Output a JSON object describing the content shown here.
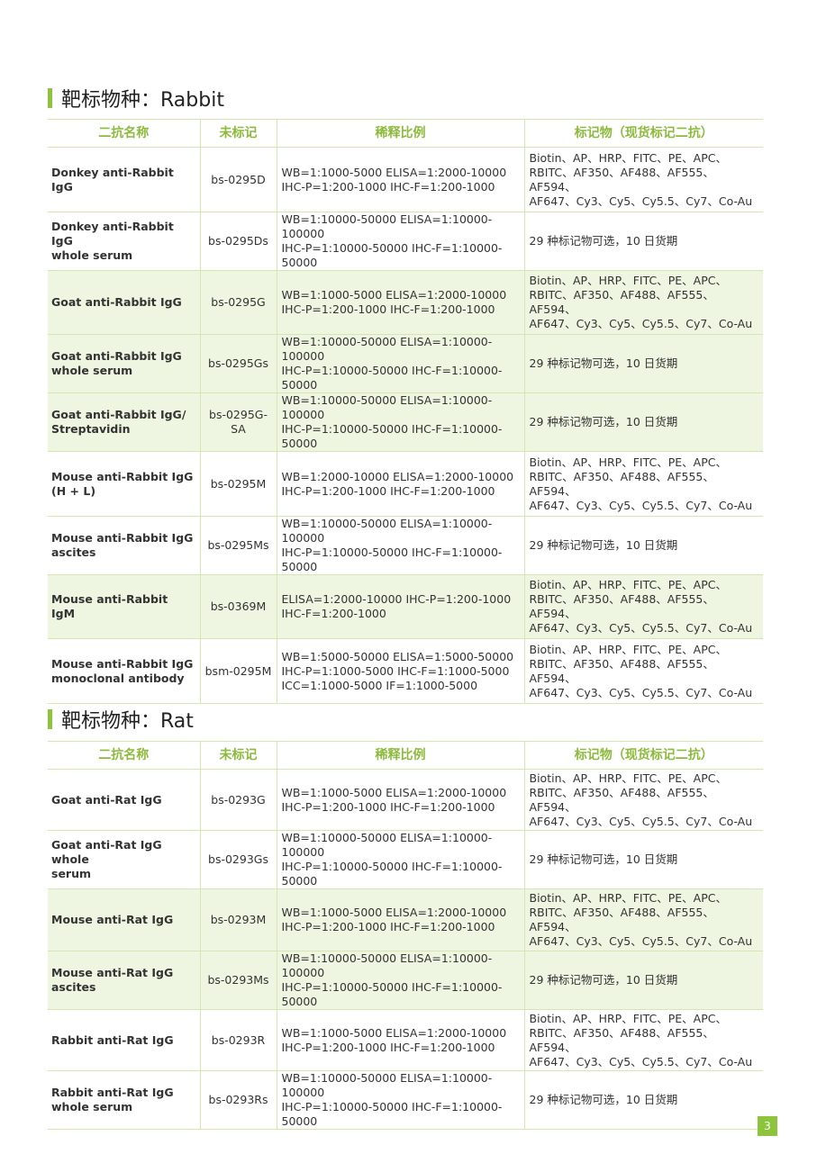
{
  "headers": {
    "name": "二抗名称",
    "code": "未标记",
    "dilution": "稀释比例",
    "label": "标记物（现货标记二抗）"
  },
  "sections": [
    {
      "title": "靶标物种：Rabbit",
      "rows": [
        {
          "name": "Donkey anti-Rabbit IgG",
          "code": "bs-0295D",
          "dilution": "WB=1:1000-5000  ELISA=1:2000-10000\nIHC-P=1:200-1000  IHC-F=1:200-1000",
          "label": "Biotin、AP、HRP、FITC、PE、APC、\nRBITC、AF350、AF488、AF555、AF594、\nAF647、Cy3、Cy5、Cy5.5、Cy7、Co-Au"
        },
        {
          "name": "Donkey anti-Rabbit IgG\nwhole serum",
          "code": "bs-0295Ds",
          "dilution": "WB=1:10000-50000  ELISA=1:10000-100000\nIHC-P=1:10000-50000  IHC-F=1:10000-50000",
          "label": "29 种标记物可选，10 日货期"
        },
        {
          "name": "Goat anti-Rabbit IgG",
          "code": "bs-0295G",
          "dilution": "WB=1:1000-5000  ELISA=1:2000-10000\nIHC-P=1:200-1000  IHC-F=1:200-1000",
          "label": "Biotin、AP、HRP、FITC、PE、APC、\nRBITC、AF350、AF488、AF555、AF594、\nAF647、Cy3、Cy5、Cy5.5、Cy7、Co-Au"
        },
        {
          "name": "Goat anti-Rabbit IgG\nwhole serum",
          "code": "bs-0295Gs",
          "dilution": "WB=1:10000-50000  ELISA=1:10000-100000\nIHC-P=1:10000-50000  IHC-F=1:10000-50000",
          "label": "29 种标记物可选，10 日货期"
        },
        {
          "name": "Goat anti-Rabbit IgG/\nStreptavidin",
          "code": "bs-0295G-\nSA",
          "dilution": "WB=1:10000-50000  ELISA=1:10000-100000\nIHC-P=1:10000-50000  IHC-F=1:10000-50000",
          "label": "29 种标记物可选，10 日货期"
        },
        {
          "name": "Mouse anti-Rabbit IgG\n(H + L)",
          "code": "bs-0295M",
          "dilution": "WB=1:2000-10000  ELISA=1:2000-10000\nIHC-P=1:200-1000  IHC-F=1:200-1000",
          "label": "Biotin、AP、HRP、FITC、PE、APC、\nRBITC、AF350、AF488、AF555、AF594、\nAF647、Cy3、Cy5、Cy5.5、Cy7、Co-Au"
        },
        {
          "name": "Mouse anti-Rabbit IgG\nascites",
          "code": "bs-0295Ms",
          "dilution": "WB=1:10000-50000  ELISA=1:10000-100000\nIHC-P=1:10000-50000  IHC-F=1:10000-50000",
          "label": "29 种标记物可选，10 日货期"
        },
        {
          "name": "Mouse anti-Rabbit IgM",
          "code": "bs-0369M",
          "dilution": "ELISA=1:2000-10000 IHC-P=1:200-1000\nIHC-F=1:200-1000",
          "label": "Biotin、AP、HRP、FITC、PE、APC、\nRBITC、AF350、AF488、AF555、AF594、\nAF647、Cy3、Cy5、Cy5.5、Cy7、Co-Au"
        },
        {
          "name": "Mouse anti-Rabbit IgG\nmonoclonal antibody",
          "code": "bsm-0295M",
          "dilution": "WB=1:5000-50000  ELISA=1:5000-50000\nIHC-P=1:1000-5000  IHC-F=1:1000-5000\nICC=1:1000-5000   IF=1:1000-5000",
          "label": "Biotin、AP、HRP、FITC、PE、APC、\nRBITC、AF350、AF488、AF555、AF594、\nAF647、Cy3、Cy5、Cy5.5、Cy7、Co-Au"
        }
      ]
    },
    {
      "title": "靶标物种：Rat",
      "rows": [
        {
          "name": "Goat anti-Rat IgG",
          "code": "bs-0293G",
          "dilution": "WB=1:1000-5000  ELISA=1:2000-10000\nIHC-P=1:200-1000  IHC-F=1:200-1000",
          "label": "Biotin、AP、HRP、FITC、PE、APC、\nRBITC、AF350、AF488、AF555、AF594、\nAF647、Cy3、Cy5、Cy5.5、Cy7、Co-Au"
        },
        {
          "name": "Goat anti-Rat IgG whole\nserum",
          "code": "bs-0293Gs",
          "dilution": "WB=1:10000-50000  ELISA=1:10000-100000\nIHC-P=1:10000-50000  IHC-F=1:10000-50000",
          "label": "29 种标记物可选，10 日货期"
        },
        {
          "name": "Mouse anti-Rat IgG",
          "code": "bs-0293M",
          "dilution": "WB=1:1000-5000  ELISA=1:2000-10000\nIHC-P=1:200-1000  IHC-F=1:200-1000",
          "label": "Biotin、AP、HRP、FITC、PE、APC、\nRBITC、AF350、AF488、AF555、AF594、\nAF647、Cy3、Cy5、Cy5.5、Cy7、Co-Au"
        },
        {
          "name": "Mouse anti-Rat IgG\nascites",
          "code": "bs-0293Ms",
          "dilution": "WB=1:10000-50000  ELISA=1:10000-100000\nIHC-P=1:10000-50000  IHC-F=1:10000-50000",
          "label": "29 种标记物可选，10 日货期"
        },
        {
          "name": "Rabbit anti-Rat IgG",
          "code": "bs-0293R",
          "dilution": "WB=1:1000-5000  ELISA=1:2000-10000\nIHC-P=1:200-1000  IHC-F=1:200-1000",
          "label": "Biotin、AP、HRP、FITC、PE、APC、\nRBITC、AF350、AF488、AF555、AF594、\nAF647、Cy3、Cy5、Cy5.5、Cy7、Co-Au"
        },
        {
          "name": "Rabbit anti-Rat IgG\nwhole serum",
          "code": "bs-0293Rs",
          "dilution": "WB=1:10000-50000  ELISA=1:10000-100000\nIHC-P=1:10000-50000  IHC-F=1:10000-50000",
          "label": "29 种标记物可选，10 日货期"
        }
      ]
    }
  ],
  "page_number": "3",
  "colors": {
    "accent": "#8cc43c",
    "header_text": "#8cba3c",
    "row_shade": "#eef5e0",
    "border": "#d6e6b0"
  }
}
